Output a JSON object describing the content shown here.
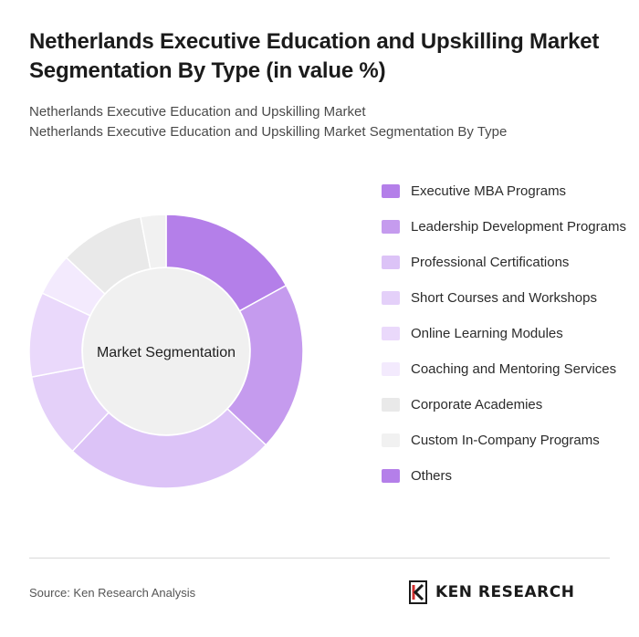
{
  "title": "Netherlands Executive Education and Upskilling Market Segmentation By Type (in value %)",
  "subtitle_lines": [
    "Netherlands Executive Education and Upskilling Market",
    "Netherlands Executive Education and Upskilling Market Segmentation By Type"
  ],
  "source": "Source: Ken Research Analysis",
  "logo": {
    "text": "KEN RESEARCH",
    "icon": "ken-research-logo-icon"
  },
  "chart_data": {
    "type": "pie",
    "variant": "donut",
    "center_label": "Market Segmentation",
    "legend_position": "right",
    "categories": [
      "Executive MBA Programs",
      "Leadership Development Programs",
      "Professional Certifications",
      "Short Courses and Workshops",
      "Online Learning Modules",
      "Coaching and Mentoring Services",
      "Corporate Academies",
      "Custom In-Company Programs",
      "Others"
    ],
    "values": [
      17,
      20,
      25,
      10,
      10,
      5,
      10,
      3,
      0
    ],
    "colors": [
      "#b47fe9",
      "#c59bee",
      "#dcc3f7",
      "#e4d0f9",
      "#ead9fb",
      "#f3eafd",
      "#e9e9e9",
      "#f1f1f1",
      "#b47fe9"
    ],
    "center_color": "#f0f0f0"
  }
}
